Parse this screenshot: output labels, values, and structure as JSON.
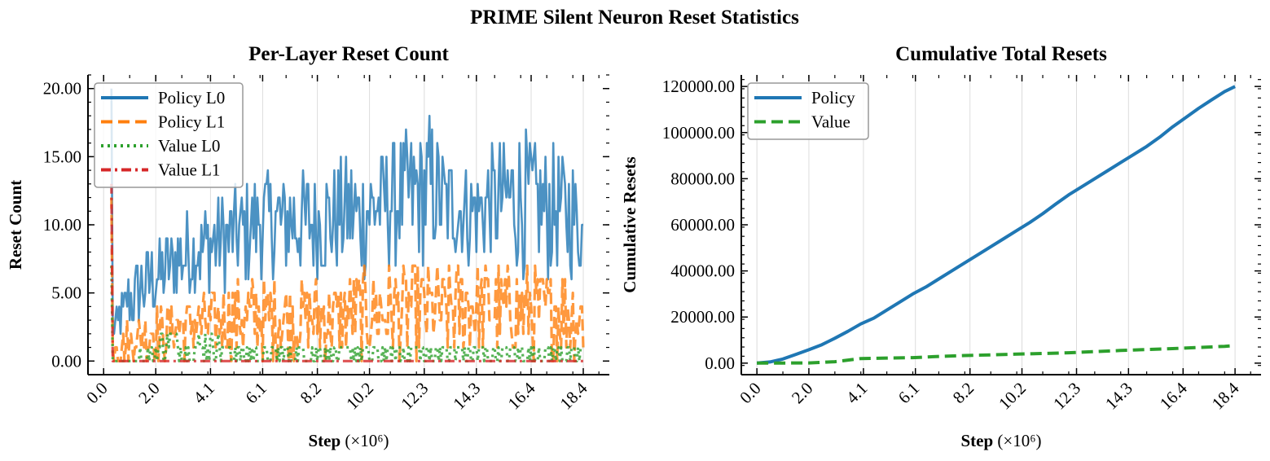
{
  "figure": {
    "suptitle": "PRIME Silent Neuron Reset Statistics"
  },
  "chart_data": [
    {
      "type": "line",
      "title": "Per-Layer Reset Count",
      "xlabel": "Step",
      "xlabel_unit": "(×10⁶)",
      "ylabel": "Reset Count",
      "xlim": [
        -0.6,
        19.4
      ],
      "ylim": [
        -1,
        21
      ],
      "xticks": [
        "0.0",
        "2.0",
        "4.1",
        "6.1",
        "8.2",
        "10.2",
        "12.3",
        "14.3",
        "16.4",
        "18.4"
      ],
      "yticks": [
        "0.00",
        "5.00",
        "10.00",
        "15.00",
        "20.00"
      ],
      "grid": "vertical",
      "legend_position": "top-left",
      "x_range": [
        0.3,
        18.4
      ],
      "x_step": 0.05,
      "series": [
        {
          "name": "Policy L0",
          "color": "#1f77b4",
          "style": "solid",
          "noisy": true,
          "description": "noisy, envelope given as [x, low, high] in data units",
          "envelope": [
            [
              0.3,
              0,
              20
            ],
            [
              0.5,
              1,
              4
            ],
            [
              1,
              2,
              7
            ],
            [
              2,
              3,
              9
            ],
            [
              3,
              4,
              11
            ],
            [
              4,
              5,
              12
            ],
            [
              5,
              5,
              13
            ],
            [
              6,
              6,
              14
            ],
            [
              7,
              6,
              14
            ],
            [
              8,
              6,
              14
            ],
            [
              9,
              6,
              15
            ],
            [
              10,
              6,
              15
            ],
            [
              11,
              7,
              16
            ],
            [
              12,
              7,
              17
            ],
            [
              12.5,
              7,
              18
            ],
            [
              13,
              7,
              16
            ],
            [
              14,
              7,
              14
            ],
            [
              15,
              7,
              16
            ],
            [
              16,
              6,
              17
            ],
            [
              17,
              6,
              16
            ],
            [
              18,
              6,
              15
            ],
            [
              18.4,
              6,
              12
            ]
          ]
        },
        {
          "name": "Policy L1",
          "color": "#ff7f0e",
          "style": "dashed",
          "noisy": true,
          "envelope": [
            [
              0.3,
              0,
              12
            ],
            [
              0.5,
              0,
              2
            ],
            [
              1,
              0,
              3
            ],
            [
              2,
              0,
              4
            ],
            [
              3,
              0,
              5
            ],
            [
              4,
              0,
              5
            ],
            [
              5,
              0,
              6
            ],
            [
              6,
              0,
              6
            ],
            [
              7,
              0,
              6
            ],
            [
              8,
              0,
              6
            ],
            [
              9,
              0,
              6
            ],
            [
              10,
              0,
              7
            ],
            [
              11,
              0,
              7
            ],
            [
              12,
              0,
              7
            ],
            [
              13,
              0,
              7
            ],
            [
              14,
              0,
              8
            ],
            [
              15,
              0,
              7
            ],
            [
              16,
              0,
              7
            ],
            [
              17,
              0,
              7
            ],
            [
              18,
              0,
              7
            ],
            [
              18.4,
              0,
              6
            ]
          ]
        },
        {
          "name": "Value L0",
          "color": "#2ca02c",
          "style": "dotted",
          "noisy": true,
          "envelope": [
            [
              0.3,
              0,
              7
            ],
            [
              0.5,
              0,
              0
            ],
            [
              2,
              0,
              1
            ],
            [
              2.5,
              0,
              3
            ],
            [
              3,
              0,
              1
            ],
            [
              3.8,
              0,
              2
            ],
            [
              4.2,
              0,
              2
            ],
            [
              5,
              0,
              1
            ],
            [
              10,
              0,
              1
            ],
            [
              18.4,
              0,
              1
            ]
          ]
        },
        {
          "name": "Value L1",
          "color": "#d62728",
          "style": "dashdot",
          "noisy": false,
          "envelope": [
            [
              0.3,
              0,
              13
            ],
            [
              0.5,
              0,
              0
            ],
            [
              18.4,
              0,
              0
            ]
          ]
        }
      ]
    },
    {
      "type": "line",
      "title": "Cumulative Total Resets",
      "xlabel": "Step",
      "xlabel_unit": "(×10⁶)",
      "ylabel": "Cumulative Resets",
      "xlim": [
        -0.6,
        19.4
      ],
      "ylim": [
        -5000,
        125000
      ],
      "xticks": [
        "0.0",
        "2.0",
        "4.1",
        "6.1",
        "8.2",
        "10.2",
        "12.3",
        "14.3",
        "16.4",
        "18.4"
      ],
      "yticks": [
        "0.00",
        "20000.00",
        "40000.00",
        "60000.00",
        "80000.00",
        "100000.00",
        "120000.00"
      ],
      "grid": "vertical",
      "legend_position": "top-left",
      "series": [
        {
          "name": "Policy",
          "color": "#1f77b4",
          "style": "solid",
          "x": [
            0,
            0.5,
            1,
            1.5,
            2,
            2.5,
            3,
            3.5,
            4,
            4.5,
            5,
            5.5,
            6,
            6.5,
            7,
            7.5,
            8,
            8.5,
            9,
            9.5,
            10,
            10.5,
            11,
            11.5,
            12,
            12.5,
            13,
            13.5,
            14,
            14.5,
            15,
            15.5,
            16,
            16.5,
            17,
            17.5,
            18,
            18.4
          ],
          "y": [
            0,
            500,
            1800,
            3800,
            5800,
            8000,
            10800,
            13800,
            17000,
            19500,
            23000,
            26500,
            30000,
            33000,
            36500,
            40000,
            43500,
            47000,
            50500,
            54000,
            57500,
            61000,
            64800,
            69000,
            73000,
            76500,
            80000,
            83500,
            87000,
            90500,
            94000,
            98000,
            102500,
            106500,
            110500,
            114200,
            117800,
            120000
          ]
        },
        {
          "name": "Value",
          "color": "#2ca02c",
          "style": "dashed",
          "x": [
            0,
            1,
            2,
            3,
            4,
            5,
            6,
            7,
            8,
            9,
            10,
            11,
            12,
            13,
            14,
            15,
            16,
            17,
            18,
            18.4
          ],
          "y": [
            0,
            50,
            100,
            600,
            2000,
            2200,
            2400,
            2900,
            3300,
            3600,
            3900,
            4200,
            4500,
            5000,
            5500,
            5900,
            6300,
            6800,
            7300,
            7600
          ]
        }
      ]
    }
  ]
}
